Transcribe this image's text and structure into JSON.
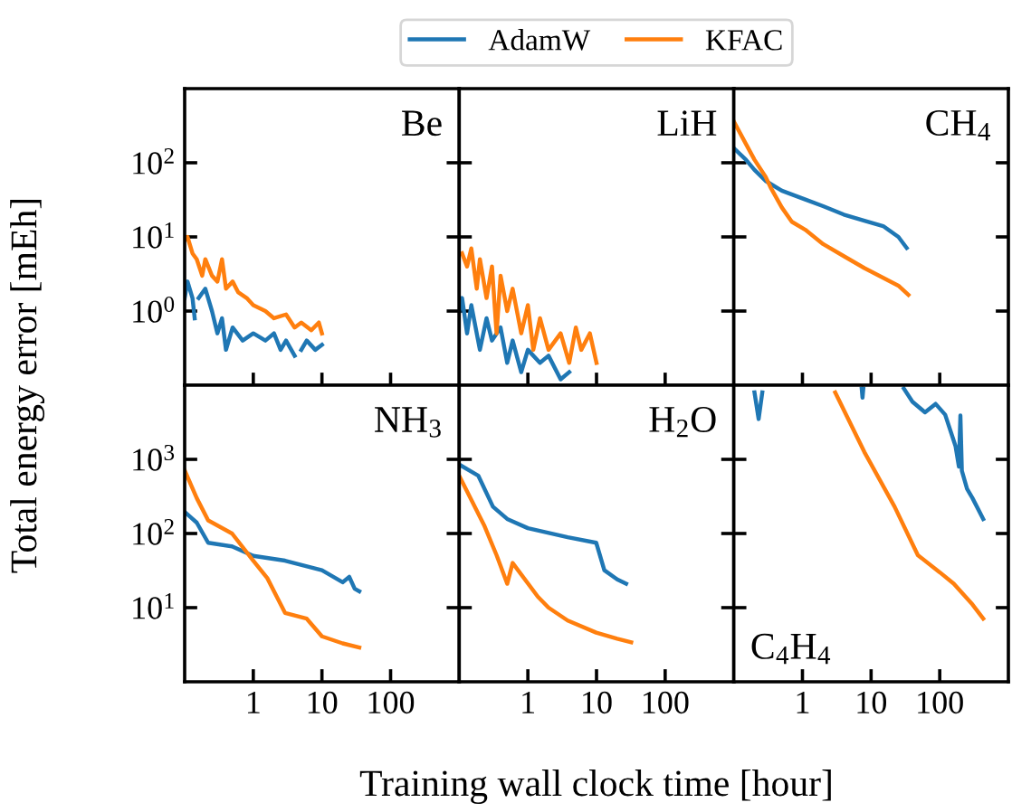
{
  "chart_data": [
    {
      "type": "line",
      "title": "Be",
      "ylabel": "Total energy error [mEh]",
      "legend": "top",
      "log": "xy",
      "grid": false,
      "tick_labels": "y",
      "xlim": [
        0.1,
        1000
      ],
      "xticks": [
        {
          "value": 1,
          "label": null
        },
        {
          "value": 10,
          "label": null
        },
        {
          "value": 100,
          "label": null
        }
      ],
      "ylim": [
        0.1,
        1000
      ],
      "yticks": [
        {
          "value": 1,
          "label": "10$^{0}$"
        },
        {
          "value": 10,
          "label": "10$^{1}$"
        },
        {
          "value": 100,
          "label": "10$^{2}$"
        }
      ],
      "series": [
        {
          "name": "AdamW",
          "color": "#1f77b4",
          "x": [
            0.1,
            0.11,
            0.13,
            0.14,
            0.15,
            0.16,
            0.2,
            0.25,
            0.3,
            0.35,
            0.4,
            0.5,
            0.7,
            1,
            1.5,
            2,
            2.5,
            3,
            4,
            4.4,
            5,
            6,
            8,
            10
          ],
          "values": [
            1.5,
            2.5,
            1.5,
            0.8,
            null,
            1.5,
            2,
            1.0,
            0.5,
            0.8,
            0.3,
            0.6,
            0.4,
            0.5,
            0.4,
            0.5,
            0.3,
            0.4,
            0.25,
            null,
            0.3,
            0.4,
            0.3,
            0.35
          ]
        },
        {
          "name": "KFAC",
          "color": "#ff7f0e",
          "x": [
            0.1,
            0.11,
            0.13,
            0.15,
            0.18,
            0.2,
            0.25,
            0.3,
            0.35,
            0.4,
            0.5,
            0.6,
            0.8,
            1,
            1.5,
            2,
            3,
            4,
            5,
            7,
            9,
            10
          ],
          "values": [
            9,
            10,
            6,
            5,
            3,
            5,
            3,
            2.5,
            5,
            2,
            2.5,
            1.8,
            1.5,
            1.2,
            1.0,
            0.8,
            0.9,
            0.6,
            0.7,
            0.55,
            0.7,
            0.5
          ]
        }
      ]
    },
    {
      "type": "line",
      "title": "LiH",
      "log": "xy",
      "grid": false,
      "tick_labels": false,
      "xlim": [
        0.1,
        1000
      ],
      "xticks": [
        {
          "value": 1,
          "label": null
        },
        {
          "value": 10,
          "label": null
        },
        {
          "value": 100,
          "label": null
        }
      ],
      "ylim": [
        0.1,
        1000
      ],
      "yticks": [
        {
          "value": 1,
          "label": null
        },
        {
          "value": 10,
          "label": null
        },
        {
          "value": 100,
          "label": null
        }
      ],
      "series": [
        {
          "color": "#1f77b4",
          "x": [
            0.1,
            0.11,
            0.13,
            0.15,
            0.2,
            0.25,
            0.3,
            0.4,
            0.5,
            0.6,
            0.8,
            1,
            1.5,
            2,
            3,
            4
          ],
          "values": [
            1,
            1.5,
            0.5,
            1.2,
            0.3,
            0.8,
            0.4,
            0.6,
            0.2,
            0.4,
            0.15,
            0.3,
            0.2,
            0.25,
            0.12,
            0.15
          ]
        },
        {
          "color": "#ff7f0e",
          "x": [
            0.11,
            0.13,
            0.15,
            0.18,
            0.2,
            0.25,
            0.3,
            0.35,
            0.4,
            0.5,
            0.6,
            0.8,
            1,
            1.2,
            1.5,
            2,
            3,
            4,
            5,
            6,
            8,
            10
          ],
          "values": [
            6,
            4,
            7,
            2,
            5,
            1.5,
            4,
            0.5,
            3,
            1,
            2,
            0.5,
            1.2,
            0.3,
            0.8,
            0.3,
            0.5,
            0.2,
            0.6,
            0.3,
            0.5,
            0.2
          ]
        }
      ]
    },
    {
      "type": "line",
      "title": "CH$_{4}$",
      "log": "xy",
      "grid": false,
      "tick_labels": false,
      "xlim": [
        0.1,
        1000
      ],
      "xticks": [
        {
          "value": 1,
          "label": null
        },
        {
          "value": 10,
          "label": null
        },
        {
          "value": 100,
          "label": null
        }
      ],
      "ylim": [
        0.1,
        1000
      ],
      "yticks": [
        {
          "value": 1,
          "label": null
        },
        {
          "value": 10,
          "label": null
        },
        {
          "value": 100,
          "label": null
        }
      ],
      "series": [
        {
          "color": "#1f77b4",
          "x": [
            0.1,
            0.15,
            0.2,
            0.29,
            0.5,
            1.1,
            2,
            4,
            8,
            15,
            25,
            33
          ],
          "values": [
            157,
            110,
            80,
            57,
            42,
            32,
            26,
            20,
            16.5,
            14,
            10,
            7.1
          ]
        },
        {
          "color": "#ff7f0e",
          "x": [
            0.1,
            0.15,
            0.2,
            0.29,
            0.35,
            0.5,
            0.7,
            1.1,
            2,
            4,
            8,
            15,
            25,
            35
          ],
          "values": [
            360,
            180,
            110,
            65,
            45,
            25,
            16,
            12.5,
            8,
            5.5,
            3.8,
            2.8,
            2.2,
            1.65
          ]
        }
      ]
    },
    {
      "type": "line",
      "title": "NH$_{3}$",
      "log": "xy",
      "grid": false,
      "xlim": [
        0.1,
        1000
      ],
      "xticks": [
        1,
        10,
        100
      ],
      "ylim": [
        1,
        10000
      ],
      "yticks": [
        {
          "value": 10,
          "label": "10$^{1}$"
        },
        {
          "value": 100,
          "label": "10$^{2}$"
        },
        {
          "value": 1000,
          "label": "10$^{3}$"
        }
      ],
      "series": [
        {
          "color": "#1f77b4",
          "x": [
            0.1,
            0.15,
            0.22,
            0.49,
            1,
            2.9,
            10,
            20,
            25,
            30,
            35
          ],
          "values": [
            196,
            140,
            75,
            67,
            50,
            43,
            32,
            22,
            26,
            18,
            16.6
          ]
        },
        {
          "color": "#ff7f0e",
          "x": [
            0.1,
            0.15,
            0.22,
            0.49,
            1,
            1.6,
            2.2,
            2.9,
            6,
            10,
            20,
            35
          ],
          "values": [
            710,
            300,
            150,
            100,
            43,
            25,
            14,
            8.5,
            7.1,
            4.1,
            3.3,
            2.9
          ]
        }
      ]
    },
    {
      "type": "line",
      "title": "H$_{2}$O",
      "xlabel": "Training wall clock time [hour]",
      "log": "xy",
      "grid": false,
      "tick_labels": "x",
      "xlim": [
        0.1,
        1000
      ],
      "xticks": [
        1,
        10,
        100
      ],
      "ylim": [
        1,
        10000
      ],
      "yticks": [
        {
          "value": 10,
          "label": null
        },
        {
          "value": 100,
          "label": null
        },
        {
          "value": 1000,
          "label": null
        }
      ],
      "series": [
        {
          "color": "#1f77b4",
          "x": [
            0.1,
            0.19,
            0.31,
            0.5,
            1,
            3.8,
            9.9,
            13,
            20,
            27
          ],
          "values": [
            850,
            600,
            230,
            157,
            118,
            89,
            75,
            32,
            24,
            21
          ]
        },
        {
          "color": "#ff7f0e",
          "x": [
            0.1,
            0.23,
            0.35,
            0.5,
            0.6,
            1.4,
            2,
            3.8,
            9.9,
            20,
            32
          ],
          "values": [
            600,
            130,
            51,
            21,
            40,
            14,
            10,
            6.7,
            4.6,
            3.8,
            3.4
          ]
        }
      ]
    },
    {
      "type": "line",
      "title": "C$_{4}$H$_{4}$",
      "log": "xy",
      "grid": false,
      "tick_labels": "x",
      "xlim": [
        0.1,
        1000
      ],
      "xticks": [
        1,
        10,
        100
      ],
      "ylim": [
        1,
        10000
      ],
      "yticks": [
        {
          "value": 10,
          "label": null
        },
        {
          "value": 100,
          "label": null
        },
        {
          "value": 1000,
          "label": null
        }
      ],
      "series": [
        {
          "color": "#1f77b4",
          "x": [
            0.2,
            0.23,
            0.26,
            0.5,
            7.3,
            7.5,
            7.7,
            15,
            30,
            40,
            61,
            87,
            120,
            170,
            190,
            200,
            210,
            250,
            300,
            430
          ],
          "values": [
            8000,
            3500,
            8000,
            null,
            9000,
            6800,
            9000,
            null,
            9000,
            6000,
            4300,
            5600,
            4000,
            1500,
            800,
            3900,
            700,
            400,
            300,
            157
          ]
        },
        {
          "color": "#ff7f0e",
          "x": [
            3,
            8,
            22,
            48,
            100,
            160,
            300,
            430
          ],
          "values": [
            8000,
            1250,
            230,
            51,
            30,
            21,
            11,
            7.1
          ]
        }
      ]
    }
  ]
}
